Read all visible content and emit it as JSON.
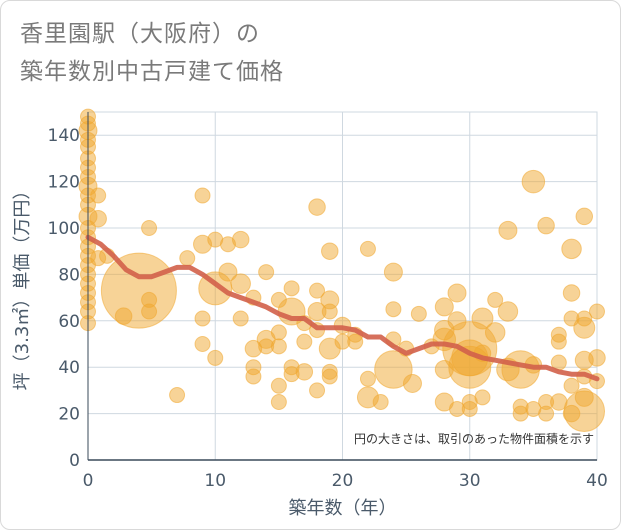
{
  "title_line1": "香里園駅（大阪府）の",
  "title_line2": "築年数別中古戸建て価格",
  "chart_data": {
    "type": "scatter",
    "title": "香里園駅（大阪府）の築年数別中古戸建て価格",
    "xlabel": "築年数（年）",
    "ylabel": "坪（3.3㎡）単価（万円）",
    "xlim": [
      0,
      40
    ],
    "ylim": [
      0,
      150
    ],
    "xticks": [
      0,
      10,
      20,
      30,
      40
    ],
    "yticks": [
      0,
      20,
      40,
      60,
      80,
      100,
      120,
      140
    ],
    "grid": true,
    "note": "円の大きさは、取引のあった物件面積を示す",
    "point_color": "#f0a830",
    "line_color": "#d2604a",
    "bubble_size_unit": "relative floor area",
    "points": [
      {
        "x": 0,
        "y": 148,
        "s": 1
      },
      {
        "x": 0,
        "y": 145,
        "s": 1
      },
      {
        "x": 0,
        "y": 142,
        "s": 1.2
      },
      {
        "x": 0,
        "y": 138,
        "s": 1
      },
      {
        "x": 0,
        "y": 135,
        "s": 1
      },
      {
        "x": 0,
        "y": 130,
        "s": 1
      },
      {
        "x": 0,
        "y": 126,
        "s": 1
      },
      {
        "x": 0,
        "y": 122,
        "s": 1
      },
      {
        "x": 0,
        "y": 118,
        "s": 1.2
      },
      {
        "x": 0,
        "y": 114,
        "s": 1
      },
      {
        "x": 0,
        "y": 110,
        "s": 1
      },
      {
        "x": 0,
        "y": 105,
        "s": 1.2
      },
      {
        "x": 0,
        "y": 100,
        "s": 1
      },
      {
        "x": 0,
        "y": 96,
        "s": 1
      },
      {
        "x": 0,
        "y": 92,
        "s": 1
      },
      {
        "x": 0,
        "y": 88,
        "s": 1
      },
      {
        "x": 0,
        "y": 84,
        "s": 1
      },
      {
        "x": 0,
        "y": 80,
        "s": 1
      },
      {
        "x": 0,
        "y": 76,
        "s": 1
      },
      {
        "x": 0,
        "y": 72,
        "s": 1
      },
      {
        "x": 0,
        "y": 68,
        "s": 1
      },
      {
        "x": 0,
        "y": 64,
        "s": 1
      },
      {
        "x": 0,
        "y": 59,
        "s": 1
      },
      {
        "x": 0.8,
        "y": 114,
        "s": 1
      },
      {
        "x": 0.8,
        "y": 104,
        "s": 1.1
      },
      {
        "x": 0.8,
        "y": 87,
        "s": 1
      },
      {
        "x": 1.5,
        "y": 88,
        "s": 1
      },
      {
        "x": 2.8,
        "y": 62,
        "s": 1.1
      },
      {
        "x": 4,
        "y": 73,
        "s": 5
      },
      {
        "x": 4.8,
        "y": 100,
        "s": 1
      },
      {
        "x": 4.8,
        "y": 69,
        "s": 1
      },
      {
        "x": 4.8,
        "y": 64,
        "s": 1
      },
      {
        "x": 7,
        "y": 28,
        "s": 1
      },
      {
        "x": 7.8,
        "y": 87,
        "s": 1
      },
      {
        "x": 9,
        "y": 114,
        "s": 1
      },
      {
        "x": 9,
        "y": 93,
        "s": 1.2
      },
      {
        "x": 9,
        "y": 61,
        "s": 1
      },
      {
        "x": 9,
        "y": 50,
        "s": 1
      },
      {
        "x": 10,
        "y": 95,
        "s": 1
      },
      {
        "x": 10,
        "y": 74,
        "s": 2.2
      },
      {
        "x": 10,
        "y": 44,
        "s": 1
      },
      {
        "x": 11,
        "y": 93,
        "s": 1
      },
      {
        "x": 11,
        "y": 81,
        "s": 1.2
      },
      {
        "x": 12,
        "y": 95,
        "s": 1.1
      },
      {
        "x": 12,
        "y": 76,
        "s": 1.3
      },
      {
        "x": 12,
        "y": 61,
        "s": 1
      },
      {
        "x": 13,
        "y": 70,
        "s": 1
      },
      {
        "x": 13,
        "y": 48,
        "s": 1.1
      },
      {
        "x": 13,
        "y": 40,
        "s": 1
      },
      {
        "x": 13,
        "y": 36,
        "s": 1
      },
      {
        "x": 14,
        "y": 81,
        "s": 1
      },
      {
        "x": 14,
        "y": 52,
        "s": 1.2
      },
      {
        "x": 14,
        "y": 49,
        "s": 1
      },
      {
        "x": 15,
        "y": 69,
        "s": 1
      },
      {
        "x": 15,
        "y": 55,
        "s": 1
      },
      {
        "x": 15,
        "y": 49,
        "s": 1
      },
      {
        "x": 15,
        "y": 32,
        "s": 1
      },
      {
        "x": 15,
        "y": 25,
        "s": 1
      },
      {
        "x": 16,
        "y": 74,
        "s": 1
      },
      {
        "x": 16,
        "y": 64,
        "s": 1.8
      },
      {
        "x": 16,
        "y": 40,
        "s": 1
      },
      {
        "x": 16,
        "y": 37,
        "s": 1
      },
      {
        "x": 17,
        "y": 59,
        "s": 1
      },
      {
        "x": 17,
        "y": 51,
        "s": 1
      },
      {
        "x": 17,
        "y": 38,
        "s": 1.1
      },
      {
        "x": 18,
        "y": 109,
        "s": 1.1
      },
      {
        "x": 18,
        "y": 73,
        "s": 1
      },
      {
        "x": 18,
        "y": 64,
        "s": 1.2
      },
      {
        "x": 18,
        "y": 56,
        "s": 1
      },
      {
        "x": 18,
        "y": 30,
        "s": 1
      },
      {
        "x": 19,
        "y": 90,
        "s": 1.1
      },
      {
        "x": 19,
        "y": 69,
        "s": 1.2
      },
      {
        "x": 19,
        "y": 64,
        "s": 1
      },
      {
        "x": 19,
        "y": 48,
        "s": 1.4
      },
      {
        "x": 19,
        "y": 38,
        "s": 1
      },
      {
        "x": 19,
        "y": 36,
        "s": 1
      },
      {
        "x": 20,
        "y": 58,
        "s": 1.1
      },
      {
        "x": 20,
        "y": 51,
        "s": 1
      },
      {
        "x": 21,
        "y": 54,
        "s": 1
      },
      {
        "x": 21,
        "y": 51,
        "s": 1
      },
      {
        "x": 22,
        "y": 91,
        "s": 1
      },
      {
        "x": 22,
        "y": 35,
        "s": 1
      },
      {
        "x": 22,
        "y": 27,
        "s": 1.4
      },
      {
        "x": 23,
        "y": 25,
        "s": 1
      },
      {
        "x": 24,
        "y": 81,
        "s": 1.2
      },
      {
        "x": 24,
        "y": 65,
        "s": 1
      },
      {
        "x": 24,
        "y": 52,
        "s": 1
      },
      {
        "x": 24,
        "y": 39,
        "s": 2.5
      },
      {
        "x": 25,
        "y": 48,
        "s": 1
      },
      {
        "x": 25.5,
        "y": 33,
        "s": 1.2
      },
      {
        "x": 26,
        "y": 63,
        "s": 1
      },
      {
        "x": 27,
        "y": 49,
        "s": 1
      },
      {
        "x": 28,
        "y": 66,
        "s": 1.2
      },
      {
        "x": 28,
        "y": 56,
        "s": 1.3
      },
      {
        "x": 28,
        "y": 52,
        "s": 1.5
      },
      {
        "x": 28,
        "y": 39,
        "s": 1.2
      },
      {
        "x": 28,
        "y": 25,
        "s": 1.2
      },
      {
        "x": 29,
        "y": 72,
        "s": 1.2
      },
      {
        "x": 29,
        "y": 60,
        "s": 1.2
      },
      {
        "x": 29,
        "y": 22,
        "s": 1
      },
      {
        "x": 30,
        "y": 48,
        "s": 3.6
      },
      {
        "x": 30,
        "y": 44,
        "s": 2.4
      },
      {
        "x": 30,
        "y": 40,
        "s": 2.8
      },
      {
        "x": 30,
        "y": 25,
        "s": 1
      },
      {
        "x": 30,
        "y": 22,
        "s": 1
      },
      {
        "x": 31,
        "y": 61,
        "s": 1.4
      },
      {
        "x": 31,
        "y": 46,
        "s": 1.1
      },
      {
        "x": 31,
        "y": 27,
        "s": 1
      },
      {
        "x": 32,
        "y": 69,
        "s": 1
      },
      {
        "x": 32,
        "y": 55,
        "s": 1.3
      },
      {
        "x": 33,
        "y": 99,
        "s": 1.2
      },
      {
        "x": 33,
        "y": 64,
        "s": 1.3
      },
      {
        "x": 33,
        "y": 39,
        "s": 1.5
      },
      {
        "x": 34,
        "y": 39,
        "s": 2.5
      },
      {
        "x": 34,
        "y": 23,
        "s": 1
      },
      {
        "x": 34,
        "y": 20,
        "s": 1
      },
      {
        "x": 35,
        "y": 120,
        "s": 1.5
      },
      {
        "x": 35,
        "y": 41,
        "s": 1.1
      },
      {
        "x": 35,
        "y": 22,
        "s": 1
      },
      {
        "x": 36,
        "y": 101,
        "s": 1.1
      },
      {
        "x": 36,
        "y": 25,
        "s": 1
      },
      {
        "x": 36,
        "y": 20,
        "s": 1
      },
      {
        "x": 37,
        "y": 54,
        "s": 1
      },
      {
        "x": 37,
        "y": 51,
        "s": 1
      },
      {
        "x": 37,
        "y": 42,
        "s": 1
      },
      {
        "x": 37,
        "y": 25,
        "s": 1.1
      },
      {
        "x": 38,
        "y": 91,
        "s": 1.3
      },
      {
        "x": 38,
        "y": 72,
        "s": 1.1
      },
      {
        "x": 38,
        "y": 61,
        "s": 1
      },
      {
        "x": 38,
        "y": 32,
        "s": 1
      },
      {
        "x": 38,
        "y": 20,
        "s": 1.1
      },
      {
        "x": 39,
        "y": 105,
        "s": 1.1
      },
      {
        "x": 39,
        "y": 61,
        "s": 1
      },
      {
        "x": 39,
        "y": 57,
        "s": 1.4
      },
      {
        "x": 39,
        "y": 43,
        "s": 1.2
      },
      {
        "x": 39,
        "y": 36,
        "s": 1
      },
      {
        "x": 39,
        "y": 27,
        "s": 1.2
      },
      {
        "x": 39,
        "y": 21,
        "s": 2.7
      },
      {
        "x": 40,
        "y": 64,
        "s": 1
      },
      {
        "x": 40,
        "y": 44,
        "s": 1.1
      },
      {
        "x": 40,
        "y": 34,
        "s": 1
      }
    ],
    "trend_line": {
      "x": [
        0,
        1,
        2,
        3,
        4,
        5,
        6,
        7,
        8,
        9,
        10,
        11,
        12,
        13,
        14,
        15,
        16,
        17,
        18,
        19,
        20,
        21,
        22,
        23,
        24,
        25,
        26,
        27,
        28,
        29,
        30,
        31,
        32,
        33,
        34,
        35,
        36,
        37,
        38,
        39,
        40
      ],
      "y": [
        96,
        93,
        88,
        82,
        79,
        79,
        81,
        83,
        83,
        80,
        76,
        72,
        70,
        68,
        66,
        63,
        61,
        61,
        57,
        57,
        57,
        56,
        53,
        53,
        49,
        46,
        48,
        50,
        50,
        49,
        46,
        44,
        43,
        42,
        41,
        40,
        40,
        38,
        37,
        37,
        35
      ]
    }
  }
}
